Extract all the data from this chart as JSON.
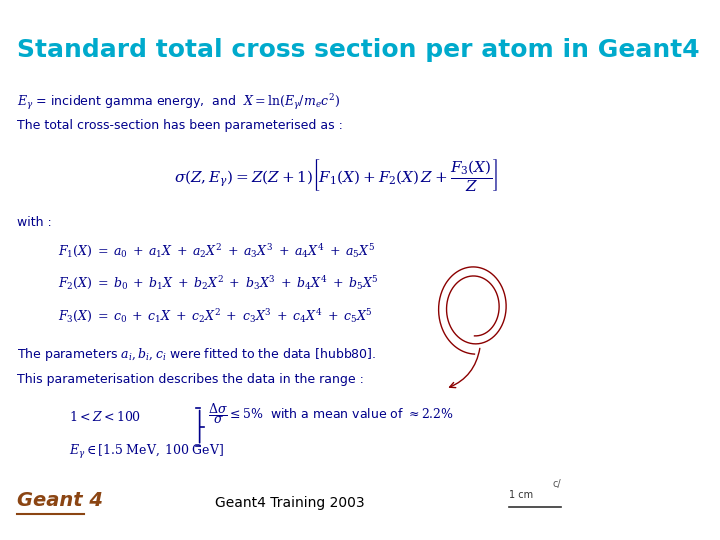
{
  "title": "Standard total cross section per atom in Geant4",
  "title_color": "#00AACC",
  "bg_color": "#FFFFFF",
  "geant4_label": "Geant 4",
  "geant4_color": "#8B4513",
  "footer_text": "Geant4 Training 2003",
  "footer_color": "#000000",
  "scale_text": "1 cm",
  "line1_italic": "$E_{\\gamma}$",
  "line1_text": " = incident gamma energy, and ",
  "line1_formula": "$X = \\ln(E_{\\gamma}/m_e c^2)$",
  "line2_text": "The total cross-section has been parameterised as :",
  "main_formula": "$\\sigma(Z, E_{\\gamma}) = Z(Z+1)\\left[F_1(X) + F_2(X)\\,Z + \\dfrac{F_3(X)}{Z}\\right]$",
  "with_text": "with :",
  "f1_formula": "$F_1(X) \\;=\\; a_0 \\;+\\; a_1 X \\;+\\; a_2 X^2 \\;+\\; a_3 X^3 \\;+\\; a_4 X^4 \\;+\\; a_5 X^5$",
  "f2_formula": "$F_2(X) \\;=\\; b_0 \\;+\\; b_1 X \\;+\\; b_2 X^2 \\;+\\; b_3 X^3 \\;+\\; b_4 X^4 \\;+\\; b_5 X^5$",
  "f3_formula": "$F_3(X) \\;=\\; c_0 \\;+\\; c_1 X \\;+\\; c_2 X^2 \\;+\\; c_3 X^3 \\;+\\; c_4 X^4 \\;+\\; c_5 X^5$",
  "param_text": "The parameters $a_i, b_i, c_i$ were fitted to the data [hubb80].",
  "param_text2": "This parameterisation describes the data in the range :",
  "range1": "$1 < Z < 100$",
  "range2": "$E_{\\gamma} \\in [1.5\\;\\mathrm{MeV},\\,100\\;\\mathrm{GeV}]$",
  "range_condition": "$\\dfrac{\\Delta\\sigma}{\\sigma} \\leq 5\\%$ \\; with a mean value of $\\approx 2.2\\%$",
  "formula_color": "#00008B",
  "text_color": "#00008B",
  "highlight_color": "#CC0000"
}
